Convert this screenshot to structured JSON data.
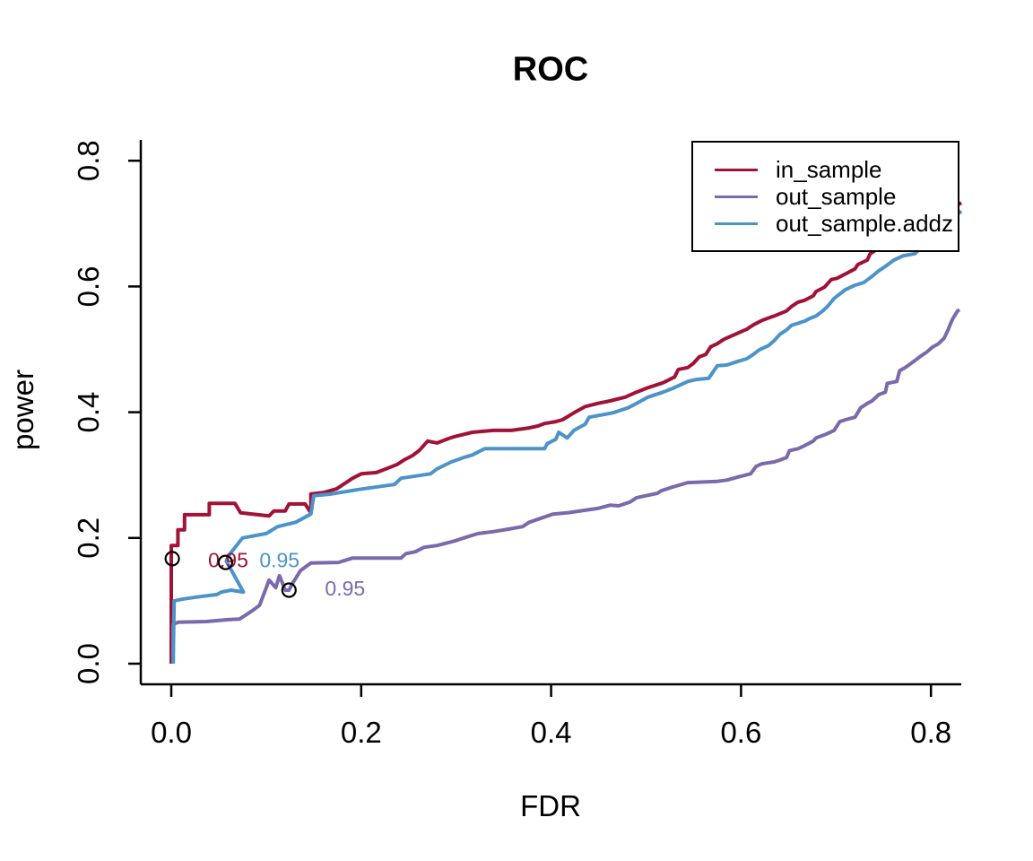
{
  "chart_data": {
    "type": "line",
    "title": "ROC",
    "xlabel": "FDR",
    "ylabel": "power",
    "xlim": [
      0,
      0.84
    ],
    "ylim": [
      0,
      0.84
    ],
    "x_ticks": {
      "values": [
        0.0,
        0.2,
        0.4,
        0.6,
        0.8
      ],
      "labels": [
        "0.0",
        "0.2",
        "0.4",
        "0.6",
        "0.8"
      ]
    },
    "y_ticks": {
      "values": [
        0.0,
        0.2,
        0.4,
        0.6,
        0.8
      ],
      "labels": [
        "0.0",
        "0.2",
        "0.4",
        "0.6",
        "0.8"
      ]
    },
    "grid": false,
    "legend_position": "top-right",
    "series": [
      {
        "name": "in_sample",
        "color": "#A11238",
        "points": [
          [
            0.0,
            0.0
          ],
          [
            0.0,
            0.188
          ],
          [
            0.007,
            0.188
          ],
          [
            0.007,
            0.213
          ],
          [
            0.014,
            0.213
          ],
          [
            0.014,
            0.237
          ],
          [
            0.04,
            0.237
          ],
          [
            0.04,
            0.255
          ],
          [
            0.067,
            0.255
          ],
          [
            0.073,
            0.24
          ],
          [
            0.103,
            0.235
          ],
          [
            0.108,
            0.243
          ],
          [
            0.12,
            0.243
          ],
          [
            0.124,
            0.254
          ],
          [
            0.141,
            0.254
          ],
          [
            0.147,
            0.24
          ],
          [
            0.147,
            0.27
          ],
          [
            0.16,
            0.272
          ],
          [
            0.174,
            0.278
          ],
          [
            0.191,
            0.295
          ],
          [
            0.2,
            0.302
          ],
          [
            0.216,
            0.304
          ],
          [
            0.228,
            0.311
          ],
          [
            0.238,
            0.317
          ],
          [
            0.245,
            0.324
          ],
          [
            0.254,
            0.331
          ],
          [
            0.261,
            0.339
          ],
          [
            0.27,
            0.354
          ],
          [
            0.28,
            0.351
          ],
          [
            0.292,
            0.358
          ],
          [
            0.298,
            0.361
          ],
          [
            0.317,
            0.368
          ],
          [
            0.339,
            0.371
          ],
          [
            0.358,
            0.371
          ],
          [
            0.377,
            0.375
          ],
          [
            0.386,
            0.378
          ],
          [
            0.393,
            0.382
          ],
          [
            0.405,
            0.385
          ],
          [
            0.412,
            0.388
          ],
          [
            0.424,
            0.399
          ],
          [
            0.436,
            0.409
          ],
          [
            0.449,
            0.414
          ],
          [
            0.462,
            0.418
          ],
          [
            0.478,
            0.424
          ],
          [
            0.49,
            0.432
          ],
          [
            0.502,
            0.439
          ],
          [
            0.518,
            0.447
          ],
          [
            0.53,
            0.456
          ],
          [
            0.534,
            0.468
          ],
          [
            0.544,
            0.471
          ],
          [
            0.55,
            0.478
          ],
          [
            0.556,
            0.488
          ],
          [
            0.563,
            0.492
          ],
          [
            0.568,
            0.504
          ],
          [
            0.575,
            0.509
          ],
          [
            0.582,
            0.516
          ],
          [
            0.594,
            0.524
          ],
          [
            0.606,
            0.532
          ],
          [
            0.613,
            0.539
          ],
          [
            0.622,
            0.546
          ],
          [
            0.635,
            0.553
          ],
          [
            0.648,
            0.561
          ],
          [
            0.653,
            0.568
          ],
          [
            0.66,
            0.575
          ],
          [
            0.667,
            0.578
          ],
          [
            0.676,
            0.585
          ],
          [
            0.679,
            0.592
          ],
          [
            0.688,
            0.599
          ],
          [
            0.695,
            0.611
          ],
          [
            0.701,
            0.613
          ],
          [
            0.71,
            0.62
          ],
          [
            0.72,
            0.628
          ],
          [
            0.723,
            0.635
          ],
          [
            0.733,
            0.642
          ],
          [
            0.736,
            0.652
          ],
          [
            0.754,
            0.67
          ],
          [
            0.773,
            0.688
          ],
          [
            0.792,
            0.703
          ],
          [
            0.811,
            0.717
          ],
          [
            0.832,
            0.733
          ]
        ]
      },
      {
        "name": "out_sample",
        "color": "#7A6AAB",
        "points": [
          [
            0.002,
            0.0
          ],
          [
            0.002,
            0.063
          ],
          [
            0.008,
            0.066
          ],
          [
            0.037,
            0.067
          ],
          [
            0.06,
            0.07
          ],
          [
            0.072,
            0.071
          ],
          [
            0.081,
            0.08
          ],
          [
            0.087,
            0.086
          ],
          [
            0.093,
            0.093
          ],
          [
            0.103,
            0.133
          ],
          [
            0.11,
            0.121
          ],
          [
            0.114,
            0.14
          ],
          [
            0.12,
            0.117
          ],
          [
            0.124,
            0.117
          ],
          [
            0.127,
            0.126
          ],
          [
            0.136,
            0.148
          ],
          [
            0.147,
            0.16
          ],
          [
            0.176,
            0.161
          ],
          [
            0.191,
            0.168
          ],
          [
            0.242,
            0.168
          ],
          [
            0.247,
            0.175
          ],
          [
            0.257,
            0.178
          ],
          [
            0.266,
            0.185
          ],
          [
            0.28,
            0.188
          ],
          [
            0.298,
            0.195
          ],
          [
            0.308,
            0.2
          ],
          [
            0.323,
            0.207
          ],
          [
            0.339,
            0.21
          ],
          [
            0.355,
            0.214
          ],
          [
            0.37,
            0.218
          ],
          [
            0.377,
            0.225
          ],
          [
            0.402,
            0.238
          ],
          [
            0.417,
            0.24
          ],
          [
            0.449,
            0.247
          ],
          [
            0.462,
            0.252
          ],
          [
            0.471,
            0.251
          ],
          [
            0.483,
            0.257
          ],
          [
            0.49,
            0.264
          ],
          [
            0.512,
            0.271
          ],
          [
            0.516,
            0.275
          ],
          [
            0.528,
            0.281
          ],
          [
            0.544,
            0.288
          ],
          [
            0.575,
            0.29
          ],
          [
            0.585,
            0.292
          ],
          [
            0.597,
            0.297
          ],
          [
            0.61,
            0.302
          ],
          [
            0.616,
            0.314
          ],
          [
            0.622,
            0.318
          ],
          [
            0.635,
            0.321
          ],
          [
            0.641,
            0.324
          ],
          [
            0.648,
            0.328
          ],
          [
            0.651,
            0.339
          ],
          [
            0.66,
            0.342
          ],
          [
            0.667,
            0.347
          ],
          [
            0.676,
            0.354
          ],
          [
            0.679,
            0.359
          ],
          [
            0.688,
            0.364
          ],
          [
            0.698,
            0.371
          ],
          [
            0.704,
            0.385
          ],
          [
            0.71,
            0.388
          ],
          [
            0.72,
            0.392
          ],
          [
            0.726,
            0.407
          ],
          [
            0.733,
            0.414
          ],
          [
            0.738,
            0.418
          ],
          [
            0.745,
            0.428
          ],
          [
            0.752,
            0.432
          ],
          [
            0.754,
            0.446
          ],
          [
            0.764,
            0.449
          ],
          [
            0.767,
            0.466
          ],
          [
            0.773,
            0.471
          ],
          [
            0.783,
            0.482
          ],
          [
            0.789,
            0.489
          ],
          [
            0.795,
            0.495
          ],
          [
            0.802,
            0.504
          ],
          [
            0.808,
            0.509
          ],
          [
            0.814,
            0.518
          ],
          [
            0.818,
            0.531
          ],
          [
            0.821,
            0.542
          ],
          [
            0.823,
            0.549
          ],
          [
            0.826,
            0.556
          ],
          [
            0.828,
            0.561
          ],
          [
            0.83,
            0.563
          ]
        ]
      },
      {
        "name": "out_sample.addz",
        "color": "#4C93C8",
        "points": [
          [
            0.002,
            0.0
          ],
          [
            0.003,
            0.1
          ],
          [
            0.013,
            0.103
          ],
          [
            0.027,
            0.106
          ],
          [
            0.048,
            0.11
          ],
          [
            0.053,
            0.114
          ],
          [
            0.063,
            0.117
          ],
          [
            0.076,
            0.114
          ],
          [
            0.058,
            0.163
          ],
          [
            0.06,
            0.171
          ],
          [
            0.075,
            0.2
          ],
          [
            0.1,
            0.207
          ],
          [
            0.112,
            0.218
          ],
          [
            0.131,
            0.225
          ],
          [
            0.147,
            0.238
          ],
          [
            0.15,
            0.267
          ],
          [
            0.169,
            0.27
          ],
          [
            0.197,
            0.277
          ],
          [
            0.235,
            0.285
          ],
          [
            0.242,
            0.295
          ],
          [
            0.273,
            0.302
          ],
          [
            0.28,
            0.31
          ],
          [
            0.295,
            0.321
          ],
          [
            0.308,
            0.328
          ],
          [
            0.317,
            0.332
          ],
          [
            0.33,
            0.342
          ],
          [
            0.393,
            0.342
          ],
          [
            0.396,
            0.35
          ],
          [
            0.405,
            0.357
          ],
          [
            0.408,
            0.368
          ],
          [
            0.417,
            0.359
          ],
          [
            0.424,
            0.371
          ],
          [
            0.436,
            0.381
          ],
          [
            0.44,
            0.392
          ],
          [
            0.465,
            0.399
          ],
          [
            0.481,
            0.407
          ],
          [
            0.49,
            0.414
          ],
          [
            0.502,
            0.424
          ],
          [
            0.518,
            0.432
          ],
          [
            0.528,
            0.438
          ],
          [
            0.544,
            0.449
          ],
          [
            0.553,
            0.452
          ],
          [
            0.566,
            0.454
          ],
          [
            0.575,
            0.474
          ],
          [
            0.585,
            0.475
          ],
          [
            0.597,
            0.481
          ],
          [
            0.606,
            0.485
          ],
          [
            0.613,
            0.492
          ],
          [
            0.619,
            0.499
          ],
          [
            0.629,
            0.506
          ],
          [
            0.635,
            0.514
          ],
          [
            0.641,
            0.524
          ],
          [
            0.648,
            0.531
          ],
          [
            0.653,
            0.538
          ],
          [
            0.667,
            0.545
          ],
          [
            0.672,
            0.549
          ],
          [
            0.679,
            0.553
          ],
          [
            0.686,
            0.561
          ],
          [
            0.691,
            0.568
          ],
          [
            0.698,
            0.581
          ],
          [
            0.704,
            0.588
          ],
          [
            0.71,
            0.595
          ],
          [
            0.72,
            0.602
          ],
          [
            0.729,
            0.606
          ],
          [
            0.738,
            0.616
          ],
          [
            0.745,
            0.625
          ],
          [
            0.752,
            0.632
          ],
          [
            0.761,
            0.642
          ],
          [
            0.771,
            0.649
          ],
          [
            0.783,
            0.652
          ],
          [
            0.802,
            0.678
          ],
          [
            0.821,
            0.706
          ],
          [
            0.832,
            0.72
          ]
        ]
      }
    ],
    "threshold_markers": [
      {
        "series": "in_sample",
        "label": "0.95",
        "point": [
          0.001,
          0.167
        ],
        "label_at": [
          0.06,
          0.165
        ],
        "label_color": "#A11238"
      },
      {
        "series": "out_sample.addz",
        "label": "0.95",
        "point": [
          0.057,
          0.161
        ],
        "label_at": [
          0.114,
          0.165
        ],
        "label_color": "#4C93C8"
      },
      {
        "series": "out_sample",
        "label": "0.95",
        "point": [
          0.124,
          0.117
        ],
        "label_at": [
          0.183,
          0.12
        ],
        "label_color": "#7A6AAB"
      }
    ],
    "marker_style": {
      "shape": "open-circle",
      "color": "#000000",
      "radius": 7.5
    }
  },
  "legend": {
    "entries": [
      {
        "label": "in_sample"
      },
      {
        "label": "out_sample"
      },
      {
        "label": "out_sample.addz"
      }
    ]
  },
  "colors": {
    "axis": "#000000",
    "background": "#ffffff",
    "text": "#000000"
  }
}
